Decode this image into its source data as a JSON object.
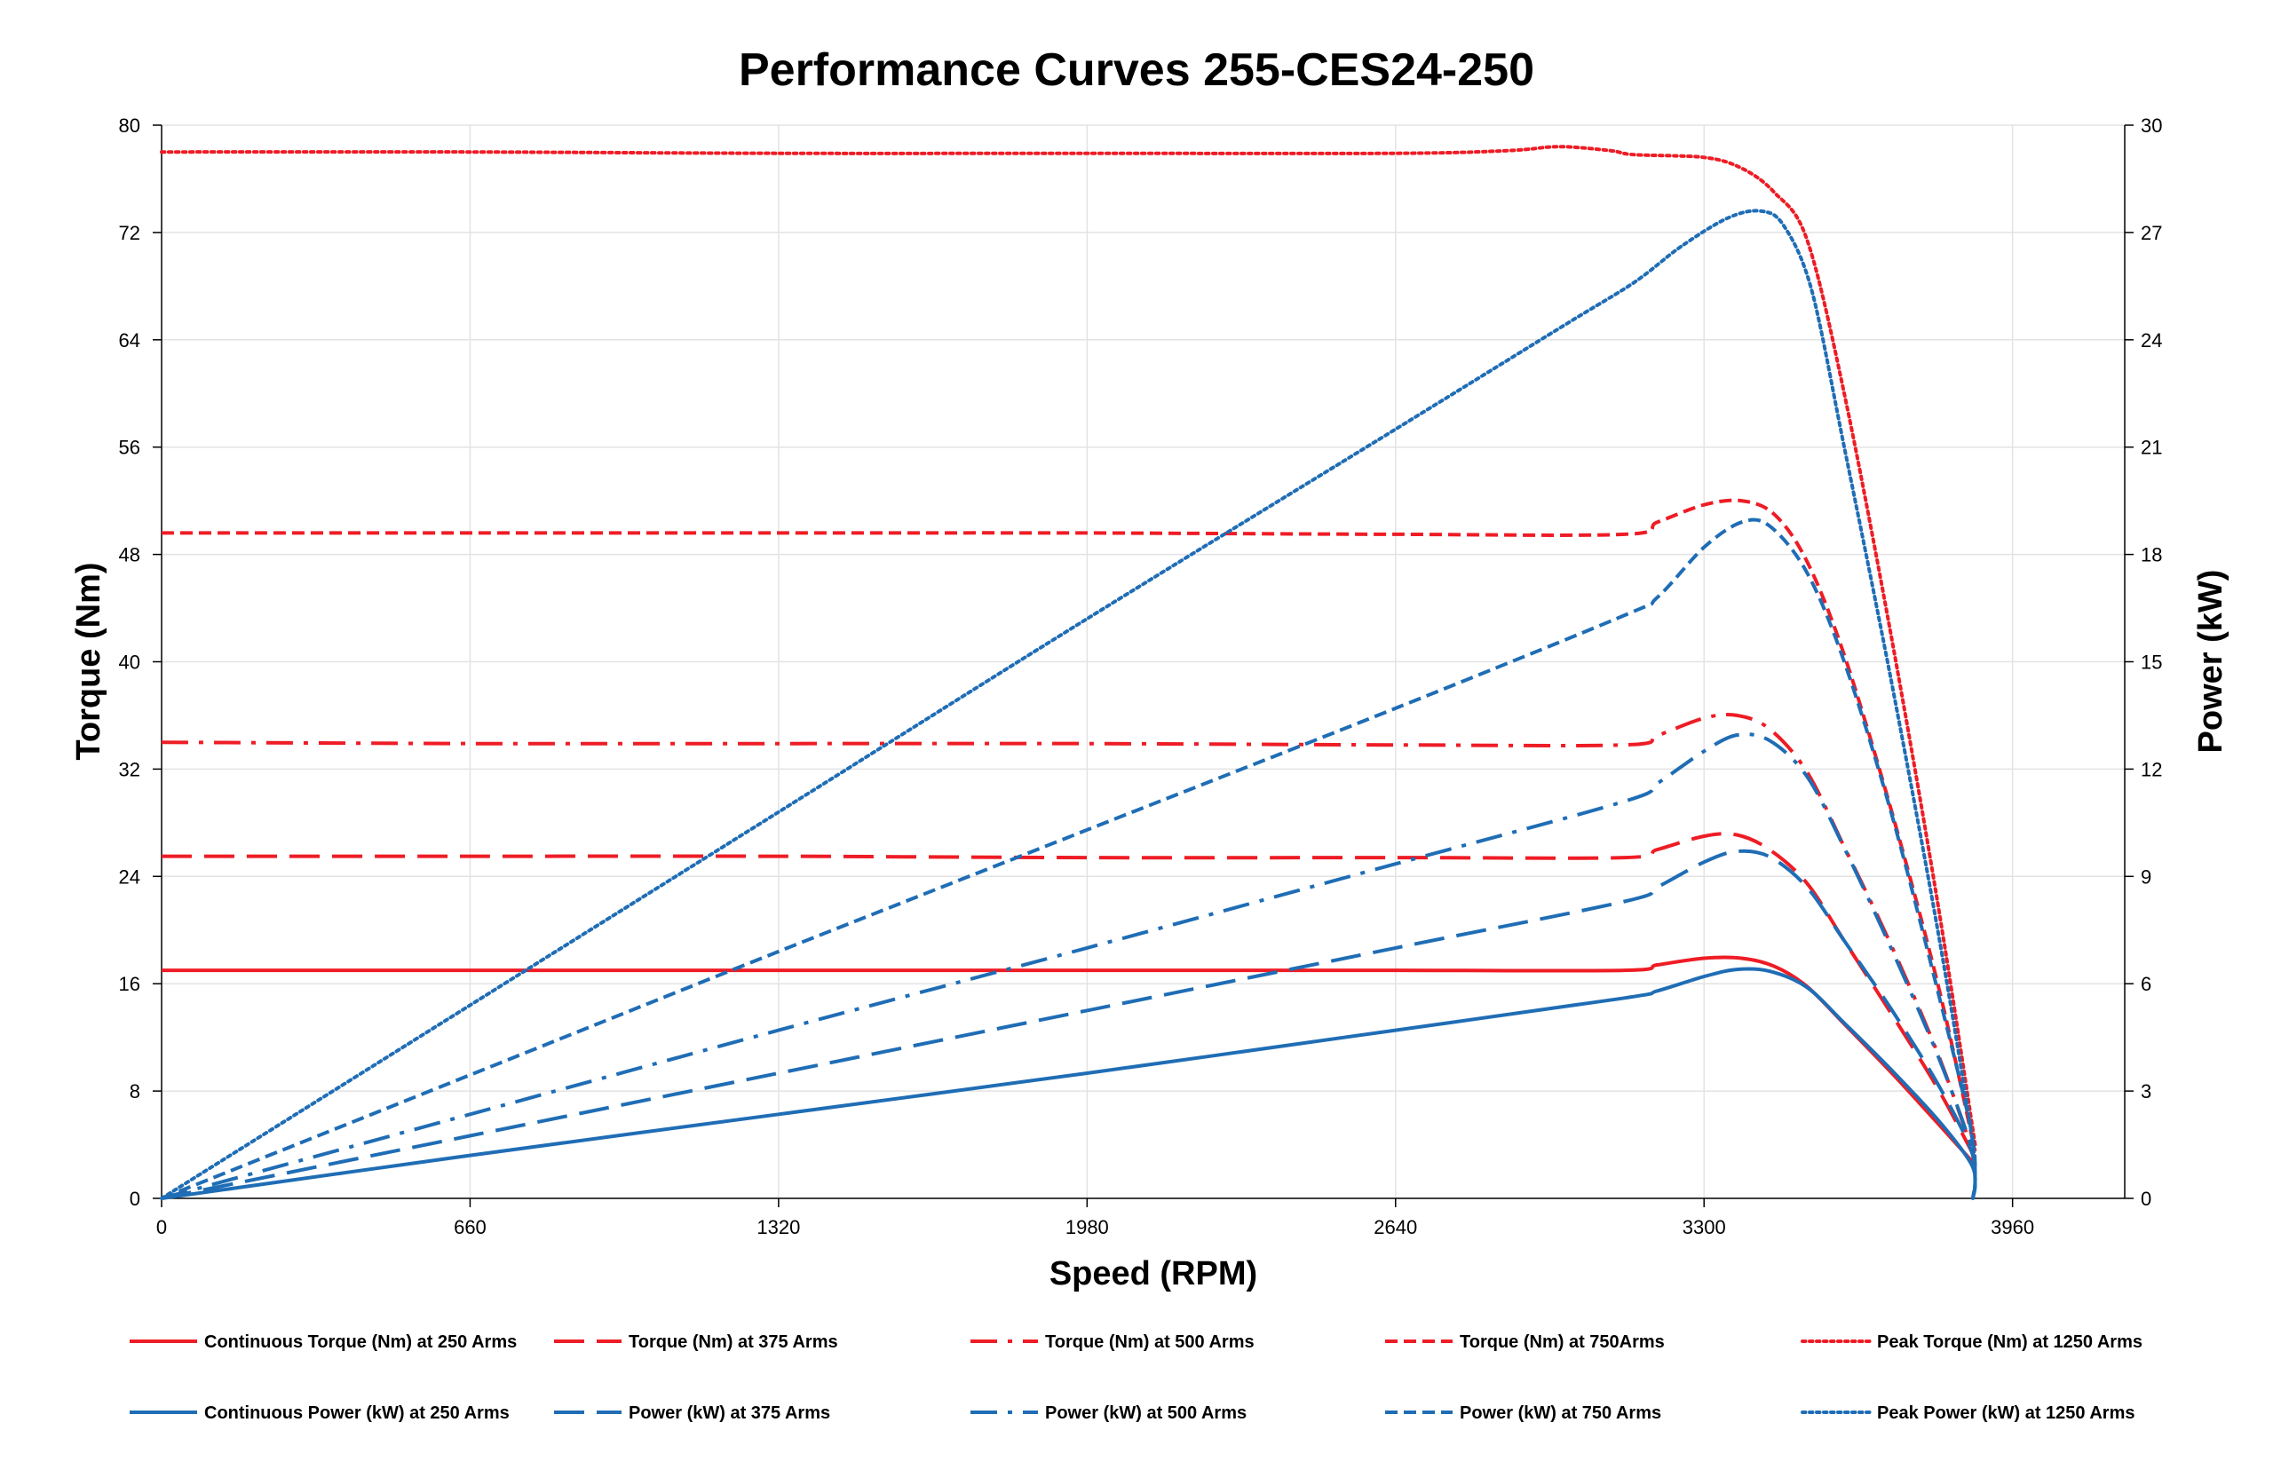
{
  "chart_data": {
    "type": "line",
    "title": "Performance Curves 255-CES24-250",
    "xlabel": "Speed (RPM)",
    "ylabel": "Torque (Nm)",
    "y2label": "Power (kW)",
    "xlim": [
      0,
      4200
    ],
    "ylim": [
      0,
      80
    ],
    "y2lim": [
      0,
      30
    ],
    "x_ticks": [
      0,
      660,
      1320,
      1980,
      2640,
      3300,
      3960
    ],
    "y_ticks": [
      0,
      8,
      16,
      24,
      32,
      40,
      48,
      56,
      64,
      72,
      80
    ],
    "y2_ticks": [
      0,
      3,
      6,
      9,
      12,
      15,
      18,
      21,
      24,
      27,
      30
    ],
    "grid": true,
    "legend_position": "bottom",
    "colors": {
      "torque": "#ee1c25",
      "power": "#1f6db5"
    },
    "series": [
      {
        "name": "Continuous Torque (Nm) at 250 Arms",
        "axis": "left",
        "color": "#ee1c25",
        "dash": "solid",
        "x": [
          0,
          660,
          1320,
          1980,
          2640,
          3130,
          3200,
          3300,
          3380,
          3450,
          3520,
          3600,
          3700,
          3800,
          3880
        ],
        "y": [
          17.0,
          17.0,
          17.0,
          17.0,
          17.0,
          17.0,
          17.4,
          17.9,
          17.9,
          17.3,
          15.8,
          13.0,
          9.4,
          5.6,
          2.5
        ]
      },
      {
        "name": "Torque (Nm) at 375 Arms",
        "axis": "left",
        "color": "#ee1c25",
        "dash": "dash",
        "x": [
          0,
          660,
          1320,
          1980,
          2640,
          3130,
          3200,
          3300,
          3370,
          3440,
          3520,
          3600,
          3700,
          3800,
          3880
        ],
        "y": [
          25.5,
          25.5,
          25.5,
          25.4,
          25.4,
          25.4,
          26.0,
          27.0,
          27.1,
          26.0,
          23.5,
          19.2,
          13.8,
          8.2,
          3.0
        ]
      },
      {
        "name": "Torque (Nm) at 500 Arms",
        "axis": "left",
        "color": "#ee1c25",
        "dash": "dashdot",
        "x": [
          0,
          660,
          1320,
          1980,
          2640,
          3130,
          3200,
          3300,
          3370,
          3440,
          3520,
          3600,
          3700,
          3800,
          3880
        ],
        "y": [
          34.0,
          33.9,
          33.9,
          33.9,
          33.8,
          33.8,
          34.5,
          35.8,
          36.0,
          35.0,
          31.8,
          26.2,
          18.9,
          10.8,
          3.0
        ]
      },
      {
        "name": "Torque (Nm) at 750Arms",
        "axis": "left",
        "color": "#ee1c25",
        "dash": "shortdash",
        "x": [
          0,
          660,
          1320,
          1980,
          2640,
          3130,
          3200,
          3300,
          3380,
          3450,
          3520,
          3600,
          3700,
          3800,
          3880
        ],
        "y": [
          49.6,
          49.6,
          49.6,
          49.6,
          49.5,
          49.5,
          50.4,
          51.7,
          52.0,
          51.0,
          47.5,
          40.5,
          29.0,
          16.0,
          3.5
        ]
      },
      {
        "name": "Peak Torque (Nm) at 1250  Arms",
        "axis": "left",
        "color": "#ee1c25",
        "dash": "dot",
        "x": [
          0,
          660,
          1320,
          1980,
          2640,
          2880,
          2990,
          3100,
          3150,
          3300,
          3380,
          3450,
          3520,
          3600,
          3700,
          3800,
          3880
        ],
        "y": [
          78.0,
          78.0,
          77.9,
          77.9,
          77.9,
          78.1,
          78.4,
          78.1,
          77.8,
          77.6,
          76.8,
          75.0,
          71.5,
          60.0,
          42.0,
          22.0,
          4.0
        ]
      },
      {
        "name": "Continuous Power (kW) at 250 Arms",
        "axis": "right",
        "color": "#1f6db5",
        "dash": "solid",
        "x": [
          0,
          660,
          1320,
          1980,
          2640,
          3130,
          3200,
          3300,
          3370,
          3440,
          3520,
          3600,
          3700,
          3800,
          3870,
          3880,
          3875
        ],
        "y": [
          0,
          1.2,
          2.35,
          3.5,
          4.7,
          5.6,
          5.8,
          6.2,
          6.4,
          6.35,
          5.9,
          4.9,
          3.6,
          2.2,
          1.0,
          0.4,
          0.0
        ]
      },
      {
        "name": "Power (kW) at 375 Arms",
        "axis": "right",
        "color": "#1f6db5",
        "dash": "dash",
        "x": [
          0,
          660,
          1320,
          1980,
          2640,
          3130,
          3200,
          3300,
          3370,
          3440,
          3520,
          3600,
          3700,
          3800,
          3870,
          3880,
          3875
        ],
        "y": [
          0,
          1.75,
          3.5,
          5.25,
          7.0,
          8.3,
          8.7,
          9.4,
          9.7,
          9.55,
          8.7,
          7.2,
          5.3,
          3.2,
          1.4,
          0.5,
          0.0
        ]
      },
      {
        "name": "Power (kW) at 500 Arms",
        "axis": "right",
        "color": "#1f6db5",
        "dash": "dashdot",
        "x": [
          0,
          660,
          1320,
          1980,
          2640,
          3130,
          3200,
          3300,
          3370,
          3440,
          3520,
          3600,
          3700,
          3800,
          3870,
          3880,
          3875
        ],
        "y": [
          0,
          2.35,
          4.7,
          7.0,
          9.35,
          11.1,
          11.6,
          12.5,
          12.95,
          12.8,
          11.8,
          9.8,
          7.0,
          4.0,
          1.5,
          0.5,
          0.0
        ]
      },
      {
        "name": "Power (kW) at 750 Arms",
        "axis": "right",
        "color": "#1f6db5",
        "dash": "shortdash",
        "x": [
          0,
          660,
          1320,
          1980,
          2640,
          3130,
          3200,
          3300,
          3380,
          3440,
          3520,
          3600,
          3700,
          3800,
          3870,
          3880,
          3875
        ],
        "y": [
          0,
          3.45,
          6.9,
          10.3,
          13.7,
          16.3,
          16.8,
          18.2,
          18.9,
          18.8,
          17.5,
          15.0,
          10.8,
          5.8,
          2.0,
          0.6,
          0.0
        ]
      },
      {
        "name": "Peak Power (kW) at 1250 Arms",
        "axis": "right",
        "color": "#1f6db5",
        "dash": "dot",
        "x": [
          0,
          660,
          1320,
          1980,
          2640,
          3000,
          3150,
          3250,
          3350,
          3420,
          3470,
          3530,
          3600,
          3700,
          3800,
          3870,
          3880,
          3875
        ],
        "y": [
          0,
          5.4,
          10.8,
          16.2,
          21.5,
          24.4,
          25.6,
          26.6,
          27.4,
          27.6,
          27.2,
          25.4,
          21.0,
          14.5,
          7.5,
          2.0,
          0.6,
          0.0
        ]
      }
    ]
  }
}
